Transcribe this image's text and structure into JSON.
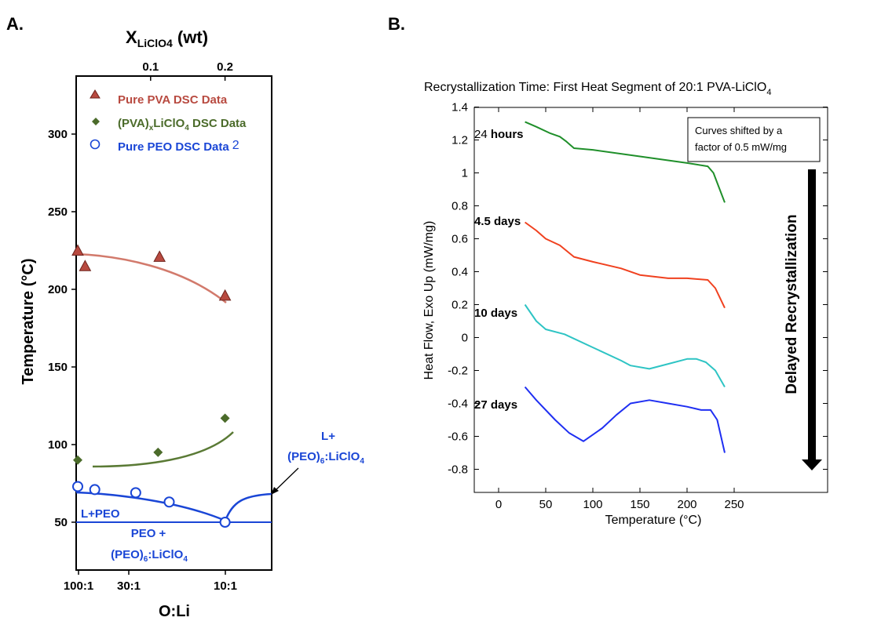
{
  "panel_a": {
    "letter": "A.",
    "top_axis_label_main": "X",
    "top_axis_label_sub": "LiClO4",
    "top_axis_label_unit": " (wt)",
    "top_ticks": [
      "0.1",
      "0.2"
    ],
    "ylabel": "Temperature (°C)",
    "xlabel": "O:Li",
    "x_ticks": [
      "100:1",
      "30:1",
      "10:1"
    ],
    "y_ticks": [
      "50",
      "100",
      "150",
      "200",
      "250",
      "300"
    ],
    "legend": {
      "pva": "Pure PVA DSC Data",
      "mix_pre": "(PVA)",
      "mix_sub": "x",
      "mix_post": "LiClO",
      "mix_sub2": "4",
      "mix_tail": " DSC Data",
      "peo": "Pure PEO DSC Data",
      "peo_ref": "2"
    },
    "region_labels": {
      "l_peo": "L+PEO",
      "peo_plus": "PEO +",
      "complex_below_pre": "(PEO)",
      "complex_below_sub": "6",
      "complex_below_post": ":LiClO",
      "complex_below_sub2": "4",
      "l_plus": "L+",
      "complex_right_pre": "(PEO)",
      "complex_right_sub": "6",
      "complex_right_post": ":LiClO",
      "complex_right_sub2": "4"
    },
    "colors": {
      "pva": "#b84a40",
      "pva_fit": "#d27a6c",
      "mix": "#4b6b2a",
      "mix_fit": "#5a7a35",
      "peo": "#1a46d6"
    }
  },
  "panel_b": {
    "letter": "B.",
    "title_main": "Recrystallization Time: First Heat Segment of 20:1 PVA-LiClO",
    "title_sub": "4",
    "ylabel": "Heat Flow, Exo Up (mW/mg)",
    "xlabel": "Temperature (°C)",
    "x_ticks": [
      "0",
      "50",
      "100",
      "150",
      "200",
      "250"
    ],
    "y_ticks": [
      "1.4",
      "1.2",
      "1",
      "0.8",
      "0.6",
      "0.4",
      "0.2",
      "0",
      "-0.2",
      "-0.4",
      "-0.6",
      "-0.8"
    ],
    "note_line1": "Curves shifted by a",
    "note_line2": "factor of 0.5 mW/mg",
    "arrow_label": "Delayed Recrystallization",
    "curve_labels": {
      "c24_num": "24",
      "c24_unit": " hours",
      "c45": "4.5 days",
      "c10": "10 days",
      "c27": "27 days"
    }
  },
  "chart_data": [
    {
      "type": "scatter",
      "title": "",
      "xlabel": "O:Li",
      "ylabel": "Temperature (°C)",
      "secondary_xlabel": "X LiClO4 (wt)",
      "x_axis": "O:Li ratio (reversed; salt content increases to the right)",
      "x_tick_labels": [
        "100:1",
        "30:1",
        "10:1"
      ],
      "secondary_x_tick_labels": [
        "0.1",
        "0.2"
      ],
      "ylim": [
        15,
        345
      ],
      "series": [
        {
          "name": "Pure PVA DSC Data",
          "marker": "triangle",
          "x_wt": [
            0.0,
            0.012,
            0.112,
            0.2
          ],
          "y": [
            225,
            215,
            221,
            196
          ]
        },
        {
          "name": "(PVA)xLiClO4 DSC Data",
          "marker": "diamond",
          "x_wt": [
            0.0,
            0.11,
            0.2
          ],
          "y": [
            90,
            95,
            117
          ]
        },
        {
          "name": "Pure PEO DSC Data",
          "marker": "open-circle",
          "x_wt": [
            0.0,
            0.025,
            0.08,
            0.125,
            0.2
          ],
          "y": [
            73,
            71,
            69,
            63,
            50
          ]
        }
      ],
      "phase_boundaries": {
        "eutectic_temperature": 50
      },
      "legend_position": "top-left"
    },
    {
      "type": "line",
      "title": "Recrystallization Time: First Heat Segment of 20:1 PVA-LiClO4",
      "xlabel": "Temperature (°C)",
      "ylabel": "Heat Flow, Exo Up (mW/mg)",
      "xlim": [
        -30,
        290
      ],
      "ylim": [
        -0.8,
        1.4
      ],
      "series": [
        {
          "name": "24 hours",
          "x": [
            28,
            40,
            55,
            65,
            72,
            80,
            100,
            150,
            200,
            222,
            228,
            232,
            240
          ],
          "y": [
            1.31,
            1.28,
            1.24,
            1.22,
            1.19,
            1.15,
            1.14,
            1.1,
            1.06,
            1.04,
            1.0,
            0.94,
            0.82
          ]
        },
        {
          "name": "4.5 days",
          "x": [
            28,
            40,
            50,
            65,
            80,
            100,
            130,
            150,
            180,
            200,
            222,
            230,
            240
          ],
          "y": [
            0.7,
            0.65,
            0.6,
            0.56,
            0.49,
            0.46,
            0.42,
            0.38,
            0.36,
            0.36,
            0.35,
            0.3,
            0.18
          ]
        },
        {
          "name": "10 days",
          "x": [
            28,
            40,
            50,
            70,
            100,
            130,
            140,
            160,
            180,
            200,
            210,
            220,
            230,
            240
          ],
          "y": [
            0.2,
            0.1,
            0.05,
            0.02,
            -0.06,
            -0.14,
            -0.17,
            -0.19,
            -0.16,
            -0.13,
            -0.13,
            -0.15,
            -0.2,
            -0.3
          ]
        },
        {
          "name": "27 days",
          "x": [
            28,
            40,
            60,
            75,
            90,
            110,
            125,
            140,
            160,
            180,
            200,
            215,
            225,
            232,
            240
          ],
          "y": [
            -0.3,
            -0.38,
            -0.5,
            -0.58,
            -0.63,
            -0.55,
            -0.47,
            -0.4,
            -0.38,
            -0.4,
            -0.42,
            -0.44,
            -0.44,
            -0.5,
            -0.7
          ]
        }
      ],
      "colors": [
        "#1f8f2a",
        "#f0411f",
        "#2ec4c4",
        "#1f2ff2"
      ],
      "grid": false,
      "annotation": "Curves shifted by a factor of 0.5 mW/mg"
    }
  ]
}
